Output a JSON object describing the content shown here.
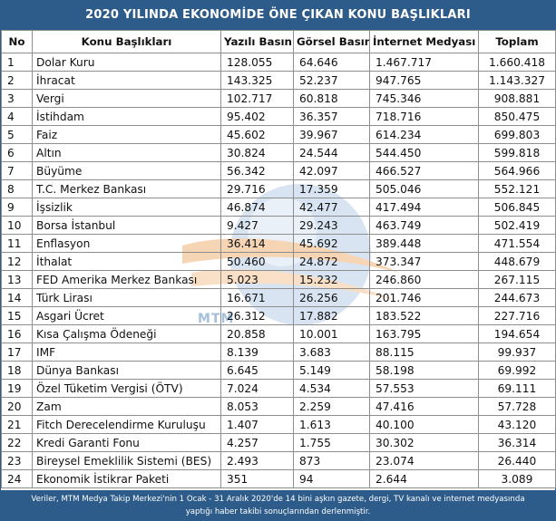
{
  "title": "2020 YILINDA EKONOMİDE ÖNE ÇIKAN KONU BAŞLIKLARI",
  "headers": {
    "no": "No",
    "topic": "Konu Başlıkları",
    "print": "Yazılı Basın",
    "visual": "Görsel Basın",
    "internet": "İnternet Medyası",
    "total": "Toplam"
  },
  "rows": [
    {
      "no": "1",
      "topic": "Dolar Kuru",
      "print": "128.055",
      "visual": "64.646",
      "internet": "1.467.717",
      "total": "1.660.418"
    },
    {
      "no": "2",
      "topic": "İhracat",
      "print": "143.325",
      "visual": "52.237",
      "internet": "947.765",
      "total": "1.143.327"
    },
    {
      "no": "3",
      "topic": "Vergi",
      "print": "102.717",
      "visual": "60.818",
      "internet": "745.346",
      "total": "908.881"
    },
    {
      "no": "4",
      "topic": "İstihdam",
      "print": "95.402",
      "visual": "36.357",
      "internet": "718.716",
      "total": "850.475"
    },
    {
      "no": "5",
      "topic": "Faiz",
      "print": "45.602",
      "visual": "39.967",
      "internet": "614.234",
      "total": "699.803"
    },
    {
      "no": "6",
      "topic": "Altın",
      "print": "30.824",
      "visual": "24.544",
      "internet": "544.450",
      "total": "599.818"
    },
    {
      "no": "7",
      "topic": "Büyüme",
      "print": "56.342",
      "visual": "42.097",
      "internet": "466.527",
      "total": "564.966"
    },
    {
      "no": "8",
      "topic": "T.C. Merkez Bankası",
      "print": "29.716",
      "visual": "17.359",
      "internet": "505.046",
      "total": "552.121"
    },
    {
      "no": "9",
      "topic": "İşsizlik",
      "print": "46.874",
      "visual": "42.477",
      "internet": "417.494",
      "total": "506.845"
    },
    {
      "no": "10",
      "topic": "Borsa İstanbul",
      "print": "9.427",
      "visual": "29.243",
      "internet": "463.749",
      "total": "502.419"
    },
    {
      "no": "11",
      "topic": "Enflasyon",
      "print": "36.414",
      "visual": "45.692",
      "internet": "389.448",
      "total": "471.554"
    },
    {
      "no": "12",
      "topic": "İthalat",
      "print": "50.460",
      "visual": "24.872",
      "internet": "373.347",
      "total": "448.679"
    },
    {
      "no": "13",
      "topic": "FED Amerika Merkez Bankası",
      "print": "5.023",
      "visual": "15.232",
      "internet": "246.860",
      "total": "267.115"
    },
    {
      "no": "14",
      "topic": "Türk Lirası",
      "print": "16.671",
      "visual": "26.256",
      "internet": "201.746",
      "total": "244.673"
    },
    {
      "no": "15",
      "topic": "Asgari Ücret",
      "print": "26.312",
      "visual": "17.882",
      "internet": "183.522",
      "total": "227.716"
    },
    {
      "no": "16",
      "topic": "Kısa Çalışma Ödeneği",
      "print": "20.858",
      "visual": "10.001",
      "internet": "163.795",
      "total": "194.654"
    },
    {
      "no": "17",
      "topic": "IMF",
      "print": "8.139",
      "visual": "3.683",
      "internet": "88.115",
      "total": "99.937"
    },
    {
      "no": "18",
      "topic": "Dünya Bankası",
      "print": "6.645",
      "visual": "5.149",
      "internet": "58.198",
      "total": "69.992"
    },
    {
      "no": "19",
      "topic": "Özel Tüketim Vergisi (ÖTV)",
      "print": "7.024",
      "visual": "4.534",
      "internet": "57.553",
      "total": "69.111"
    },
    {
      "no": "20",
      "topic": "Zam",
      "print": "8.053",
      "visual": "2.259",
      "internet": "47.416",
      "total": "57.728"
    },
    {
      "no": "21",
      "topic": "Fitch Derecelendirme Kuruluşu",
      "print": "1.407",
      "visual": "1.613",
      "internet": "40.100",
      "total": "43.120"
    },
    {
      "no": "22",
      "topic": "Kredi Garanti Fonu",
      "print": "4.257",
      "visual": "1.755",
      "internet": "30.302",
      "total": "36.314"
    },
    {
      "no": "23",
      "topic": "Bireysel Emeklilik Sistemi (BES)",
      "print": "2.493",
      "visual": "873",
      "internet": "23.074",
      "total": "26.440"
    },
    {
      "no": "24",
      "topic": "Ekonomik İstikrar Paketi",
      "print": "351",
      "visual": "94",
      "internet": "2.644",
      "total": "3.089"
    }
  ],
  "footer": {
    "line1": "Veriler, MTM Medya Takip Merkezi'nin 1 Ocak - 31 Aralık 2020'de 14 bini aşkın gazete, dergi, TV kanalı ve internet medyasında",
    "line2": "yaptığı haber takibi sonuçlarından derlenmiştir."
  },
  "watermark": {
    "text": "MTM",
    "icon": "mtm-globe-logo"
  },
  "colors": {
    "header_bar": "#2e5c8a",
    "globe": "#b9cfe6",
    "swoosh": "#f0b37a"
  }
}
